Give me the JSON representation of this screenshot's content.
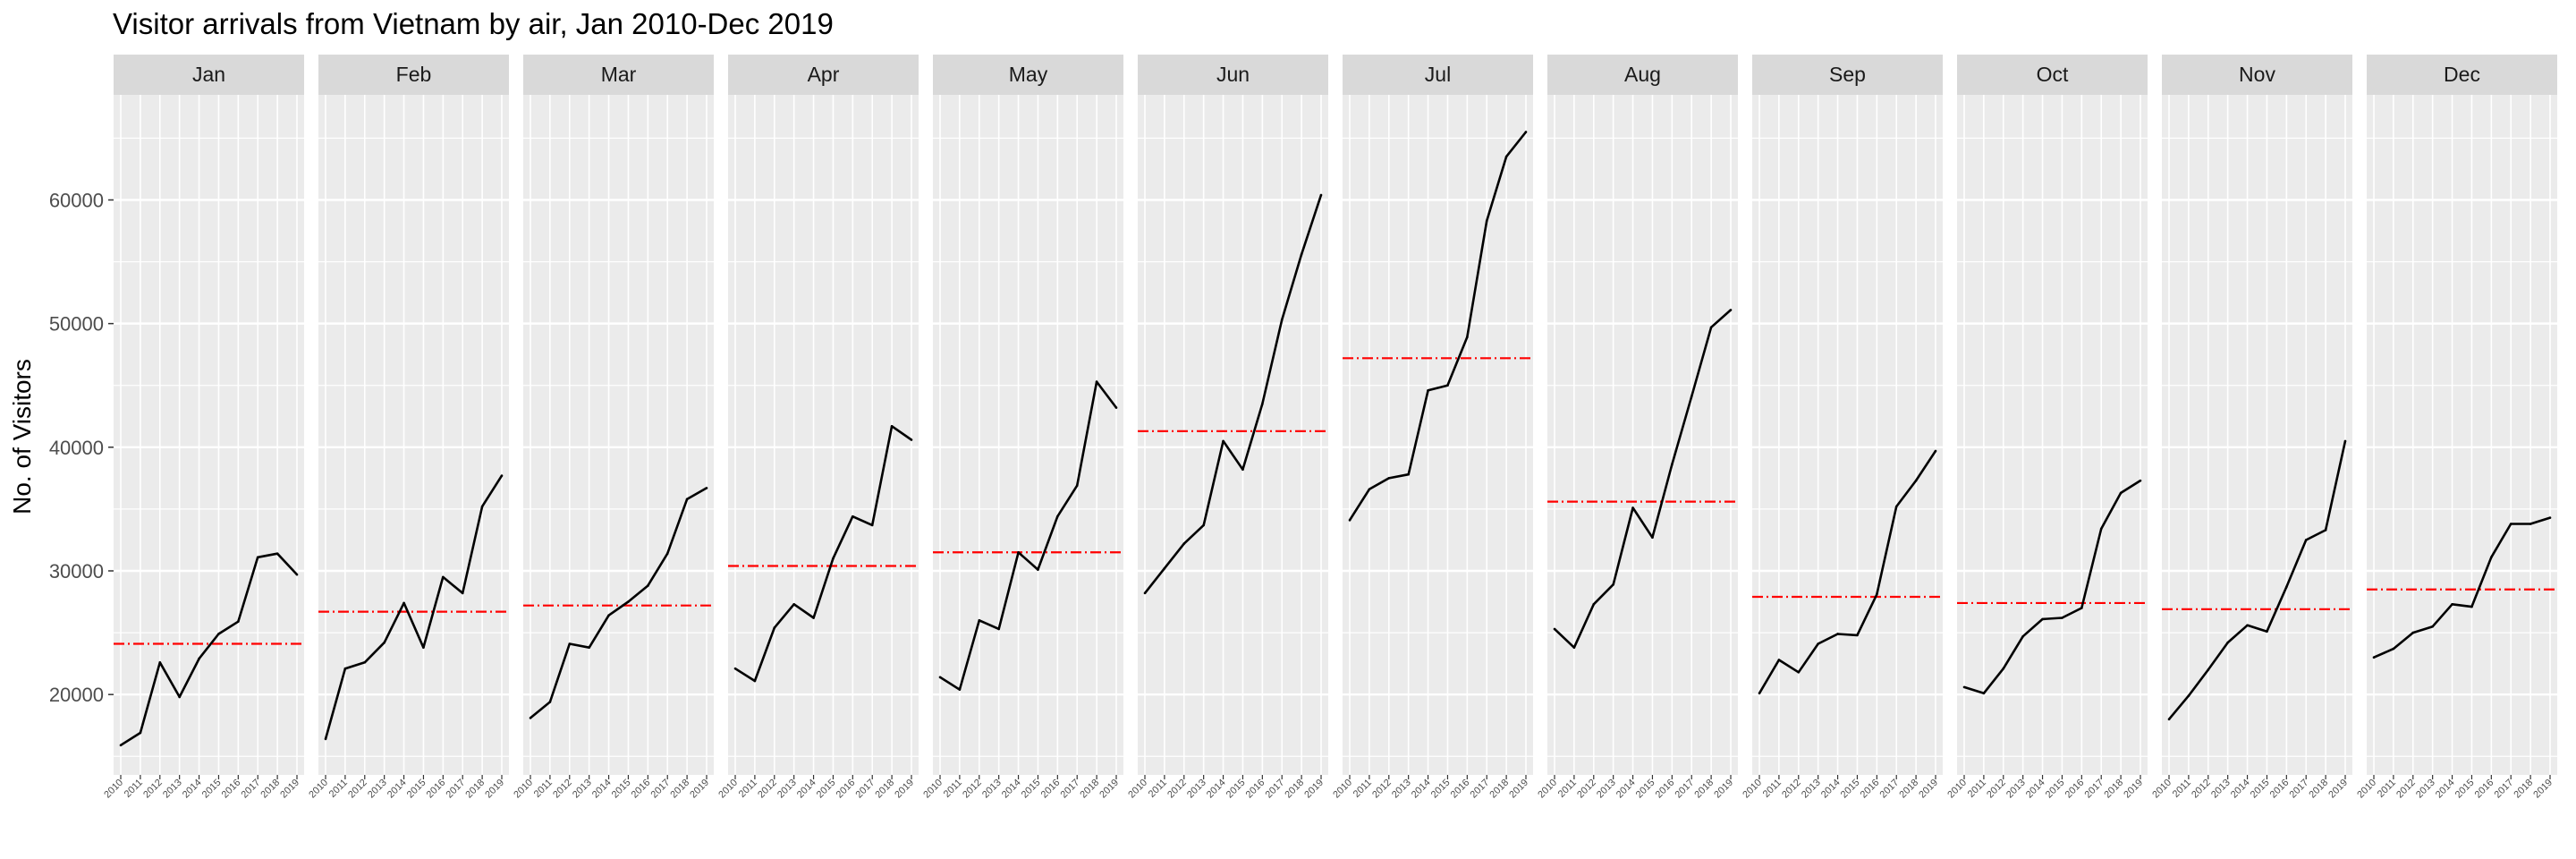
{
  "chart_data": {
    "type": "line",
    "title": "Visitor arrivals from Vietnam by air, Jan 2010-Dec 2019",
    "xlabel": "",
    "ylabel": "No. of Visitors",
    "facets": [
      "Jan",
      "Feb",
      "Mar",
      "Apr",
      "May",
      "Jun",
      "Jul",
      "Aug",
      "Sep",
      "Oct",
      "Nov",
      "Dec"
    ],
    "x": [
      "2010",
      "2011",
      "2012",
      "2013",
      "2014",
      "2015",
      "2016",
      "2017",
      "2018",
      "2019"
    ],
    "y_ticks": [
      "20000",
      "30000",
      "40000",
      "50000",
      "60000"
    ],
    "ylim": [
      13500,
      68500
    ],
    "grid": true,
    "series_style": {
      "line_color": "#000000",
      "mean_color": "#ff0000",
      "mean_dash": "dotdash"
    },
    "series": [
      {
        "values": [
          15900,
          16900,
          22600,
          19800,
          22900,
          24900,
          25900,
          31100,
          31400,
          29700
        ],
        "mean": 24100
      },
      {
        "values": [
          16400,
          22100,
          22600,
          24200,
          27400,
          23800,
          29500,
          28200,
          35200,
          37700
        ],
        "mean": 26700
      },
      {
        "values": [
          18100,
          19400,
          24100,
          23800,
          26400,
          27500,
          28800,
          31400,
          35800,
          36700
        ],
        "mean": 27200
      },
      {
        "values": [
          22100,
          21100,
          25400,
          27300,
          26200,
          31000,
          34400,
          33700,
          41700,
          40600
        ],
        "mean": 30400
      },
      {
        "values": [
          21400,
          20400,
          26000,
          25300,
          31500,
          30100,
          34400,
          36900,
          45300,
          43200
        ],
        "mean": 31500
      },
      {
        "values": [
          28200,
          30200,
          32200,
          33700,
          40500,
          38200,
          43500,
          50300,
          55600,
          60400
        ],
        "mean": 41300
      },
      {
        "values": [
          34100,
          36600,
          37500,
          37800,
          44600,
          45000,
          48900,
          58300,
          63500,
          65500
        ],
        "mean": 47200
      },
      {
        "values": [
          25300,
          23800,
          27300,
          28900,
          35100,
          32700,
          38600,
          44100,
          49700,
          51100
        ],
        "mean": 35600
      },
      {
        "values": [
          20100,
          22800,
          21800,
          24100,
          24900,
          24800,
          28100,
          35200,
          37300,
          39700
        ],
        "mean": 27900
      },
      {
        "values": [
          20600,
          20100,
          22100,
          24700,
          26100,
          26200,
          27000,
          33400,
          36300,
          37300
        ],
        "mean": 27400
      },
      {
        "values": [
          18000,
          19900,
          22000,
          24200,
          25600,
          25100,
          28700,
          32500,
          33300,
          40500
        ],
        "mean": 26900
      },
      {
        "values": [
          23000,
          23700,
          25000,
          25500,
          27300,
          27100,
          31100,
          33800,
          33800,
          34300
        ],
        "mean": 28500
      }
    ]
  }
}
